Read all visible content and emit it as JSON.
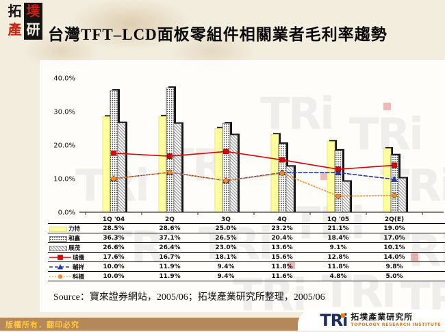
{
  "header": {
    "logo_tiles": [
      "拓",
      "墣",
      "產",
      "研"
    ],
    "title": "台灣TFT–LCD面板零組件相關業者毛利率趨勢"
  },
  "watermark": {
    "text": "TRi"
  },
  "chart_data": {
    "type": "bar+line combo",
    "title": "台灣TFT–LCD面板零組件相關業者毛利率趨勢",
    "categories": [
      "1Q '04",
      "2Q",
      "3Q",
      "4Q",
      "1Q '05",
      "2Q(E)"
    ],
    "y_ticks": [
      "40.0%",
      "30.0%",
      "20.0%",
      "10.0%",
      "0.0%"
    ],
    "ylim": [
      0,
      40
    ],
    "grid": false,
    "legend_position": "table-left",
    "value_suffix": "%",
    "series": [
      {
        "name": "力特",
        "kind": "bar",
        "pattern": "solid",
        "color": "#ffff9e",
        "values": [
          28.5,
          28.6,
          25.0,
          23.2,
          21.1,
          19.0
        ]
      },
      {
        "name": "和鑫",
        "kind": "bar",
        "pattern": "dots",
        "color": "#1b1b1b",
        "values": [
          36.3,
          37.1,
          26.5,
          20.4,
          18.4,
          17.0
        ]
      },
      {
        "name": "展茂",
        "kind": "bar",
        "pattern": "hatch",
        "color": "#9a9a9a",
        "values": [
          26.6,
          26.4,
          23.0,
          13.6,
          9.1,
          10.1
        ]
      },
      {
        "name": "瑞儀",
        "kind": "line",
        "line_style": "solid",
        "marker": "square",
        "color": "#e30000",
        "values": [
          17.6,
          16.7,
          18.1,
          15.6,
          12.8,
          14.0
        ]
      },
      {
        "name": "輔祥",
        "kind": "line",
        "line_style": "dashed",
        "marker": "triangle",
        "color": "#2438b8",
        "values": [
          10.0,
          11.9,
          9.4,
          11.8,
          11.8,
          9.8
        ]
      },
      {
        "name": "科橋",
        "kind": "line",
        "line_style": "dotted",
        "marker": "circle",
        "color": "#ff8a1e",
        "values": [
          10.0,
          11.9,
          9.4,
          11.6,
          4.8,
          5.0
        ]
      }
    ]
  },
  "source": {
    "text": "Source：寶來證券網站，2005/06；拓墣產業研究所整理，2005/06"
  },
  "footer": {
    "copyright": "版權所有．翻印必究",
    "logo_text": "TRi",
    "logo_cn": "拓墣產業研究所",
    "logo_en": "TOPOLOGY RESEARCH INSTITUTE"
  }
}
